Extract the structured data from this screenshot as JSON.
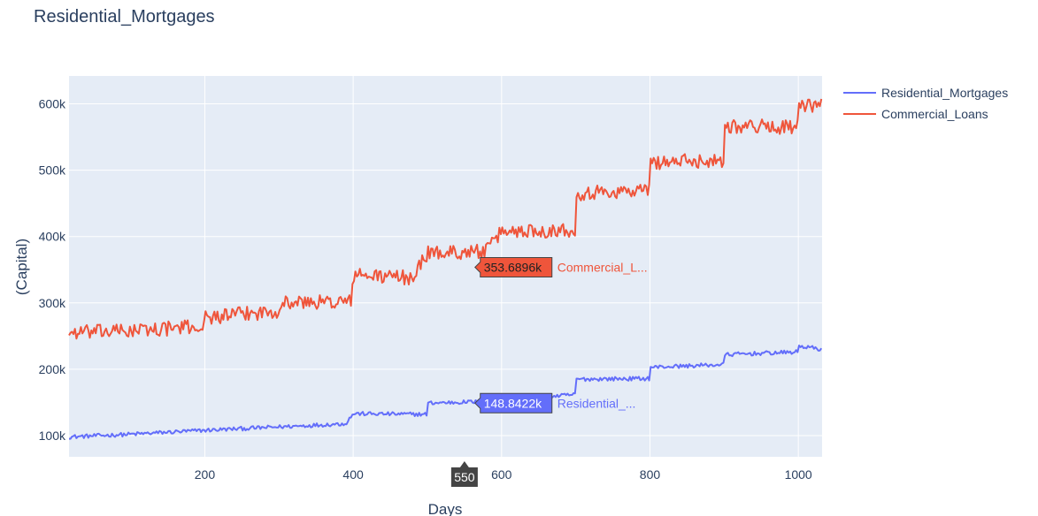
{
  "chart_data": {
    "type": "line",
    "title": "Residential_Mortgages",
    "xlabel": "Days",
    "ylabel": "(Capital)",
    "xlim": [
      17,
      1032
    ],
    "ylim": [
      68000,
      642000
    ],
    "x_ticks": [
      200,
      400,
      600,
      800,
      1000
    ],
    "y_ticks": [
      100000,
      200000,
      300000,
      400000,
      500000,
      600000
    ],
    "y_tick_labels": [
      "100k",
      "200k",
      "300k",
      "400k",
      "500k",
      "600k"
    ],
    "grid": true,
    "legend_position": "top-right",
    "series": [
      {
        "name": "Residential_Mortgages",
        "color": "#636efa",
        "step_points": [
          [
            17,
            98000
          ],
          [
            100,
            102000
          ],
          [
            200,
            108000
          ],
          [
            300,
            113000
          ],
          [
            390,
            118000
          ],
          [
            400,
            133000
          ],
          [
            500,
            132000
          ],
          [
            501,
            149000
          ],
          [
            600,
            152000
          ],
          [
            700,
            162000
          ],
          [
            701,
            185000
          ],
          [
            800,
            186000
          ],
          [
            801,
            203000
          ],
          [
            900,
            207000
          ],
          [
            901,
            222000
          ],
          [
            1000,
            226000
          ],
          [
            1001,
            235000
          ],
          [
            1032,
            230000
          ]
        ],
        "noise": 3000
      },
      {
        "name": "Commercial_Loans",
        "color": "#ef553b",
        "step_points": [
          [
            17,
            255000
          ],
          [
            100,
            258000
          ],
          [
            200,
            265000
          ],
          [
            201,
            278000
          ],
          [
            300,
            288000
          ],
          [
            301,
            300000
          ],
          [
            397,
            302000
          ],
          [
            400,
            342000
          ],
          [
            480,
            338000
          ],
          [
            500,
            375000
          ],
          [
            580,
            378000
          ],
          [
            600,
            408000
          ],
          [
            700,
            410000
          ],
          [
            701,
            465000
          ],
          [
            800,
            470000
          ],
          [
            801,
            512000
          ],
          [
            900,
            515000
          ],
          [
            901,
            567000
          ],
          [
            1000,
            565000
          ],
          [
            1001,
            595000
          ],
          [
            1032,
            598000
          ]
        ],
        "noise": 11000
      }
    ],
    "hover": {
      "x_label": "550",
      "labels": [
        {
          "series": "Commercial_Loans",
          "value": "353.6896k",
          "name": "Commercial_L...",
          "x": 557,
          "y": 353690
        },
        {
          "series": "Residential_Mortgages",
          "value": "148.8422k",
          "name": "Residential_...",
          "x": 557,
          "y": 148842
        }
      ]
    }
  }
}
